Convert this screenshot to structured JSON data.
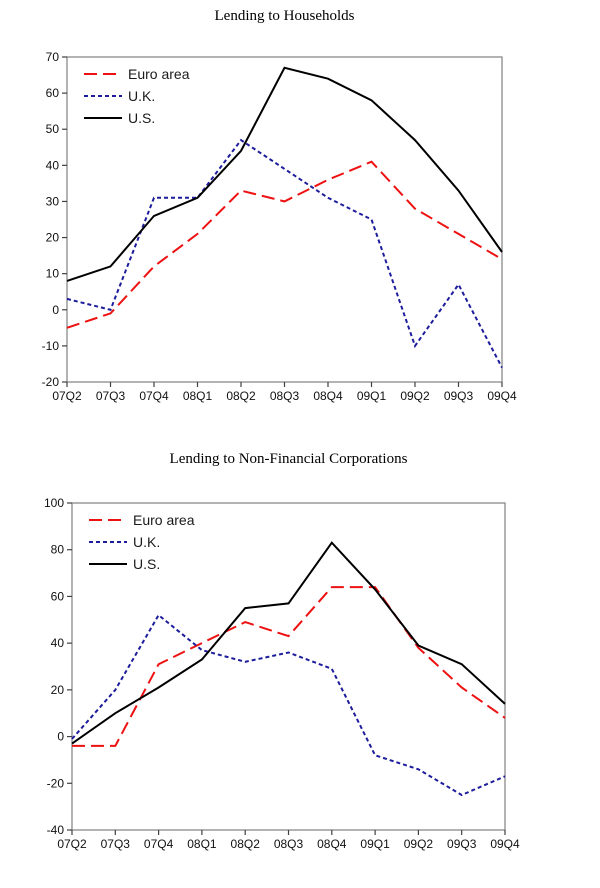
{
  "page": {
    "background": "#ffffff",
    "frame_color": "#808080",
    "tick_color": "#404040"
  },
  "chart_data": [
    {
      "type": "line",
      "title": "Lending to Households",
      "categories": [
        "07Q2",
        "07Q3",
        "07Q4",
        "08Q1",
        "08Q2",
        "08Q3",
        "08Q4",
        "09Q1",
        "09Q2",
        "09Q3",
        "09Q4"
      ],
      "xlabel": "",
      "ylabel": "",
      "ylim": [
        -20,
        70
      ],
      "ytick_step": 10,
      "grid": false,
      "legend_position": "top-left-inside",
      "legend_entries": [
        "Euro area",
        "U.K.",
        "U.S."
      ],
      "series": [
        {
          "name": "Euro area",
          "color": "#ee1111",
          "dash": "13 6",
          "values": [
            -5,
            -1,
            12,
            21,
            33,
            30,
            36,
            41,
            28,
            21,
            14
          ]
        },
        {
          "name": "U.K.",
          "color": "#1c1c9c",
          "dash": "4 3",
          "values": [
            3,
            0,
            31,
            31,
            47,
            39,
            31,
            25,
            -10,
            7,
            -16
          ]
        },
        {
          "name": "U.S.",
          "color": "#000000",
          "dash": "",
          "values": [
            8,
            12,
            26,
            31,
            44,
            67,
            64,
            58,
            47,
            33,
            16
          ]
        }
      ]
    },
    {
      "type": "line",
      "title": "Lending to Non-Financial Corporations",
      "categories": [
        "07Q2",
        "07Q3",
        "07Q4",
        "08Q1",
        "08Q2",
        "08Q3",
        "08Q4",
        "09Q1",
        "09Q2",
        "09Q3",
        "09Q4"
      ],
      "xlabel": "",
      "ylabel": "",
      "ylim": [
        -40,
        100
      ],
      "ytick_step": 20,
      "grid": false,
      "legend_position": "top-left-inside",
      "legend_entries": [
        "Euro area",
        "U.K.",
        "U.S."
      ],
      "series": [
        {
          "name": "Euro area",
          "color": "#ee1111",
          "dash": "13 6",
          "values": [
            -4,
            -4,
            31,
            40,
            49,
            43,
            64,
            64,
            38,
            21,
            8
          ]
        },
        {
          "name": "U.K.",
          "color": "#1c1c9c",
          "dash": "4 3",
          "values": [
            -1,
            20,
            52,
            37,
            32,
            36,
            29,
            -8,
            -14,
            -25,
            -17
          ]
        },
        {
          "name": "U.S.",
          "color": "#000000",
          "dash": "",
          "values": [
            -3,
            10,
            21,
            33,
            55,
            57,
            83,
            63,
            39,
            31,
            14
          ]
        }
      ]
    }
  ]
}
